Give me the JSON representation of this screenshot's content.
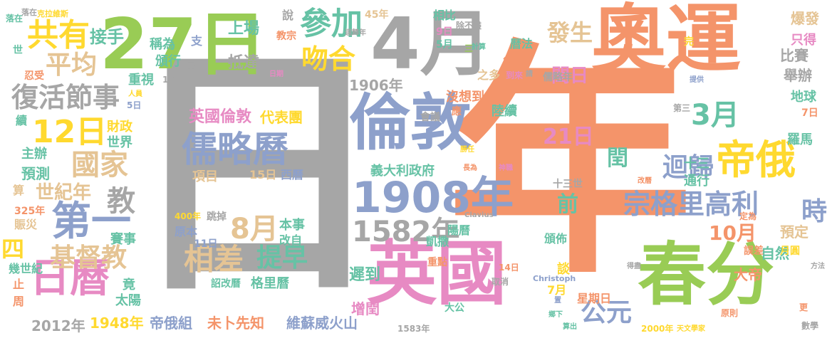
{
  "colors": {
    "orange": "#f4946a",
    "green": "#99cc55",
    "blue": "#8da0cb",
    "pink": "#e78ac3",
    "gray": "#a6a6a6",
    "gold": "#e5c494",
    "yellow": "#ffd92f",
    "teal": "#66c2a5"
  },
  "words": [
    {
      "text": "年",
      "color": "orange"
    },
    {
      "text": "日",
      "color": "gray"
    },
    {
      "text": "奧運",
      "color": "orange"
    },
    {
      "text": "英國",
      "color": "pink"
    },
    {
      "text": "春分",
      "color": "green"
    },
    {
      "text": "倫敦",
      "color": "blue"
    },
    {
      "text": "4月",
      "color": "gray"
    },
    {
      "text": "27日",
      "color": "green"
    },
    {
      "text": "1908年",
      "color": "blue"
    },
    {
      "text": "儒略曆",
      "color": "blue"
    },
    {
      "text": "帝俄",
      "color": "yellow"
    },
    {
      "text": "第一",
      "color": "blue"
    },
    {
      "text": "日曆",
      "color": "pink"
    },
    {
      "text": "宗格里高利",
      "color": "blue"
    },
    {
      "text": "1582年",
      "color": "gray"
    },
    {
      "text": "參加",
      "color": "teal"
    },
    {
      "text": "共有",
      "color": "yellow"
    },
    {
      "text": "12日",
      "color": "yellow"
    },
    {
      "text": "8月",
      "color": "gold"
    },
    {
      "text": "3月",
      "color": "teal"
    },
    {
      "text": "國家",
      "color": "gold"
    },
    {
      "text": "復活節事",
      "color": "gray"
    },
    {
      "text": "基督教",
      "color": "gold"
    },
    {
      "text": "相差",
      "color": "gold"
    },
    {
      "text": "吻合",
      "color": "yellow"
    },
    {
      "text": "平均",
      "color": "gold"
    },
    {
      "text": "迴歸",
      "color": "blue"
    },
    {
      "text": "時",
      "color": "blue"
    },
    {
      "text": "10月",
      "color": "orange"
    },
    {
      "text": "21日",
      "color": "pink"
    },
    {
      "text": "發生",
      "color": "gold"
    },
    {
      "text": "提早",
      "color": "teal"
    },
    {
      "text": "公元",
      "color": "blue"
    },
    {
      "text": "教",
      "color": "gray"
    },
    {
      "text": "世紀年",
      "color": "gold"
    },
    {
      "text": "英國倫敦",
      "color": "pink"
    },
    {
      "text": "代表團",
      "color": "yellow"
    },
    {
      "text": "次",
      "color": "orange"
    },
    {
      "text": "閏日",
      "color": "pink"
    },
    {
      "text": "閏",
      "color": "teal"
    },
    {
      "text": "前",
      "color": "teal"
    },
    {
      "text": "四",
      "color": "yellow"
    },
    {
      "text": "接手",
      "color": "teal"
    },
    {
      "text": "上場",
      "color": "teal"
    },
    {
      "text": "抵達",
      "color": "gray"
    },
    {
      "text": "2012年",
      "color": "gray"
    },
    {
      "text": "1948年",
      "color": "yellow"
    },
    {
      "text": "帝俄組",
      "color": "blue"
    },
    {
      "text": "未卜先知",
      "color": "orange"
    },
    {
      "text": "維蘇威火山",
      "color": "blue"
    },
    {
      "text": "1906年",
      "color": "gray"
    },
    {
      "text": "義大利政府",
      "color": "teal"
    },
    {
      "text": "遲到",
      "color": "teal"
    },
    {
      "text": "增閏",
      "color": "pink"
    },
    {
      "text": "陸續",
      "color": "teal"
    },
    {
      "text": "沒想到",
      "color": "orange"
    },
    {
      "text": "大帝",
      "color": "orange"
    },
    {
      "text": "預定",
      "color": "gold"
    },
    {
      "text": "自然",
      "color": "teal"
    },
    {
      "text": "羅馬",
      "color": "teal"
    },
    {
      "text": "舉辦",
      "color": "gray"
    },
    {
      "text": "比賽",
      "color": "gray"
    },
    {
      "text": "爆發",
      "color": "gold"
    },
    {
      "text": "只得",
      "color": "pink"
    },
    {
      "text": "地球",
      "color": "teal"
    },
    {
      "text": "通行",
      "color": "teal"
    },
    {
      "text": "十三",
      "color": "teal"
    },
    {
      "text": "預測",
      "color": "teal"
    },
    {
      "text": "財政",
      "color": "yellow"
    },
    {
      "text": "世界",
      "color": "teal"
    },
    {
      "text": "主辦",
      "color": "teal"
    },
    {
      "text": "稱為",
      "color": "teal"
    },
    {
      "text": "頒行",
      "color": "teal"
    },
    {
      "text": "當年",
      "color": "gray"
    },
    {
      "text": "重視",
      "color": "teal"
    },
    {
      "text": "項目",
      "color": "gold"
    },
    {
      "text": "15日",
      "color": "gold"
    },
    {
      "text": "西曆",
      "color": "blue"
    },
    {
      "text": "原本",
      "color": "blue"
    },
    {
      "text": "本事",
      "color": "teal"
    },
    {
      "text": "改自",
      "color": "teal"
    },
    {
      "text": "格里曆",
      "color": "teal"
    },
    {
      "text": "詔改曆",
      "color": "teal"
    },
    {
      "text": "11日",
      "color": "blue"
    },
    {
      "text": "跳掉",
      "color": "gray"
    },
    {
      "text": "400年",
      "color": "yellow"
    },
    {
      "text": "賽事",
      "color": "teal"
    },
    {
      "text": "太陽",
      "color": "teal"
    },
    {
      "text": "竟",
      "color": "teal"
    },
    {
      "text": "幾世紀",
      "color": "teal"
    },
    {
      "text": "賑災",
      "color": "gold"
    },
    {
      "text": "325年",
      "color": "orange"
    },
    {
      "text": "算",
      "color": "gold"
    },
    {
      "text": "止",
      "color": "orange"
    },
    {
      "text": "周",
      "color": "orange"
    },
    {
      "text": "續",
      "color": "teal"
    },
    {
      "text": "忍受",
      "color": "orange"
    },
    {
      "text": "世",
      "color": "teal"
    },
    {
      "text": "落在",
      "color": "teal"
    },
    {
      "text": "5日",
      "color": "blue"
    },
    {
      "text": "人員",
      "color": "yellow"
    },
    {
      "text": "1800年",
      "color": "gray"
    },
    {
      "text": "日期",
      "color": "pink"
    },
    {
      "text": "教宗",
      "color": "orange"
    },
    {
      "text": "說",
      "color": "gray"
    },
    {
      "text": "支",
      "color": "blue"
    },
    {
      "text": "暦法",
      "color": "teal"
    },
    {
      "text": "相比",
      "color": "teal"
    },
    {
      "text": "45年",
      "color": "gold"
    },
    {
      "text": "9日",
      "color": "pink"
    },
    {
      "text": "5月",
      "color": "teal"
    },
    {
      "text": "除不盡",
      "color": "gray"
    },
    {
      "text": "三",
      "color": "green"
    },
    {
      "text": "計算",
      "color": "teal"
    },
    {
      "text": "之多",
      "color": "gold"
    },
    {
      "text": "迴歸年",
      "color": "gray"
    },
    {
      "text": "到來",
      "color": "pink"
    },
    {
      "text": "請",
      "color": "gray"
    },
    {
      "text": "儒略年",
      "color": "gray"
    },
    {
      "text": "完",
      "color": "yellow"
    },
    {
      "text": "提供",
      "color": "blue"
    },
    {
      "text": "第三",
      "color": "gray"
    },
    {
      "text": "7日",
      "color": "orange"
    },
    {
      "text": "十三世",
      "color": "gray"
    },
    {
      "text": "會議",
      "color": "gray"
    },
    {
      "text": "應",
      "color": "orange"
    },
    {
      "text": "勝任",
      "color": "yellow"
    },
    {
      "text": "長為",
      "color": "orange"
    },
    {
      "text": "神職",
      "color": "pink"
    },
    {
      "text": "陽曆",
      "color": "teal"
    },
    {
      "text": "Clavius",
      "color": "gray"
    },
    {
      "text": "改曆",
      "color": "orange"
    },
    {
      "text": "定為",
      "color": "orange"
    },
    {
      "text": "月圓",
      "color": "yellow"
    },
    {
      "text": "誤差",
      "color": "orange"
    },
    {
      "text": "方法",
      "color": "gray"
    },
    {
      "text": "得盡",
      "color": "gray"
    },
    {
      "text": "頒佈",
      "color": "teal"
    },
    {
      "text": "凱撒",
      "color": "teal"
    },
    {
      "text": "重點",
      "color": "orange"
    },
    {
      "text": "14日",
      "color": "orange"
    },
    {
      "text": "取消",
      "color": "gray"
    },
    {
      "text": "談",
      "color": "yellow"
    },
    {
      "text": "7月",
      "color": "yellow"
    },
    {
      "text": "Christoph",
      "color": "blue"
    },
    {
      "text": "置",
      "color": "blue"
    },
    {
      "text": "星期日",
      "color": "orange"
    },
    {
      "text": "大公",
      "color": "teal"
    },
    {
      "text": "鄉下",
      "color": "teal"
    },
    {
      "text": "1583年",
      "color": "gray"
    },
    {
      "text": "算出",
      "color": "teal"
    },
    {
      "text": "2000年",
      "color": "yellow"
    },
    {
      "text": "原則",
      "color": "orange"
    },
    {
      "text": "天文學家",
      "color": "yellow"
    },
    {
      "text": "更",
      "color": "orange"
    },
    {
      "text": "數學",
      "color": "gray"
    },
    {
      "text": "克拉維斯",
      "color": "yellow"
    },
    {
      "text": "落在",
      "color": "gray"
    }
  ]
}
